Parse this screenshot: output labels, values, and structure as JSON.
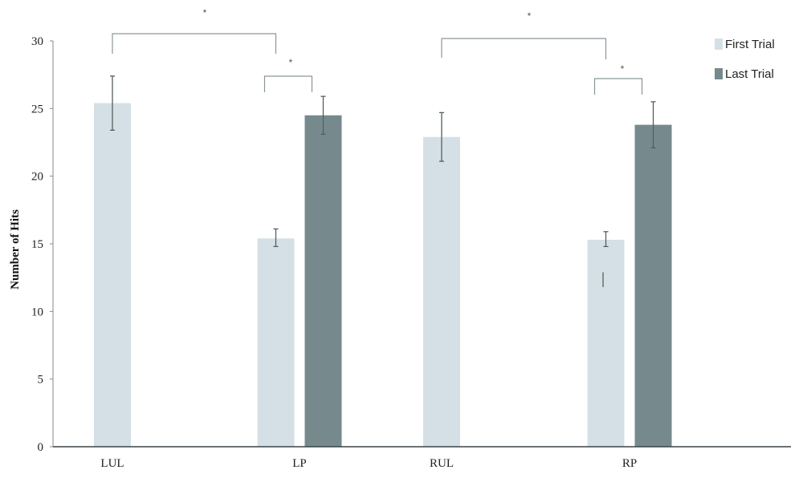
{
  "chart_data": {
    "type": "bar",
    "categories": [
      "LUL",
      "LP",
      "RUL",
      "RP"
    ],
    "ylabel": "Number of Hits",
    "xlabel": "",
    "ylim": [
      0,
      30
    ],
    "yticks": [
      "0",
      "5",
      "10",
      "15",
      "20",
      "25",
      "30"
    ],
    "grid": false,
    "legend_position": "top-right",
    "series": [
      {
        "name": "First Trial",
        "color": "#d5e0e6",
        "values": [
          25.4,
          15.4,
          22.9,
          15.3
        ],
        "error_low": [
          23.4,
          14.8,
          21.1,
          14.8
        ],
        "error_high": [
          27.4,
          16.1,
          24.7,
          15.9
        ]
      },
      {
        "name": "Last Trial",
        "color": "#768a8d",
        "values": [
          null,
          24.5,
          null,
          23.8
        ],
        "error_low": [
          null,
          23.1,
          null,
          22.1
        ],
        "error_high": [
          null,
          25.9,
          null,
          25.5
        ]
      }
    ],
    "annotations": [
      {
        "text": "*",
        "from": "LUL",
        "to": "LP"
      },
      {
        "text": "*",
        "from": "LP",
        "to": "LP"
      },
      {
        "text": "*",
        "from": "RUL",
        "to": "RP"
      },
      {
        "text": "*",
        "from": "RP",
        "to": "RP"
      }
    ]
  }
}
